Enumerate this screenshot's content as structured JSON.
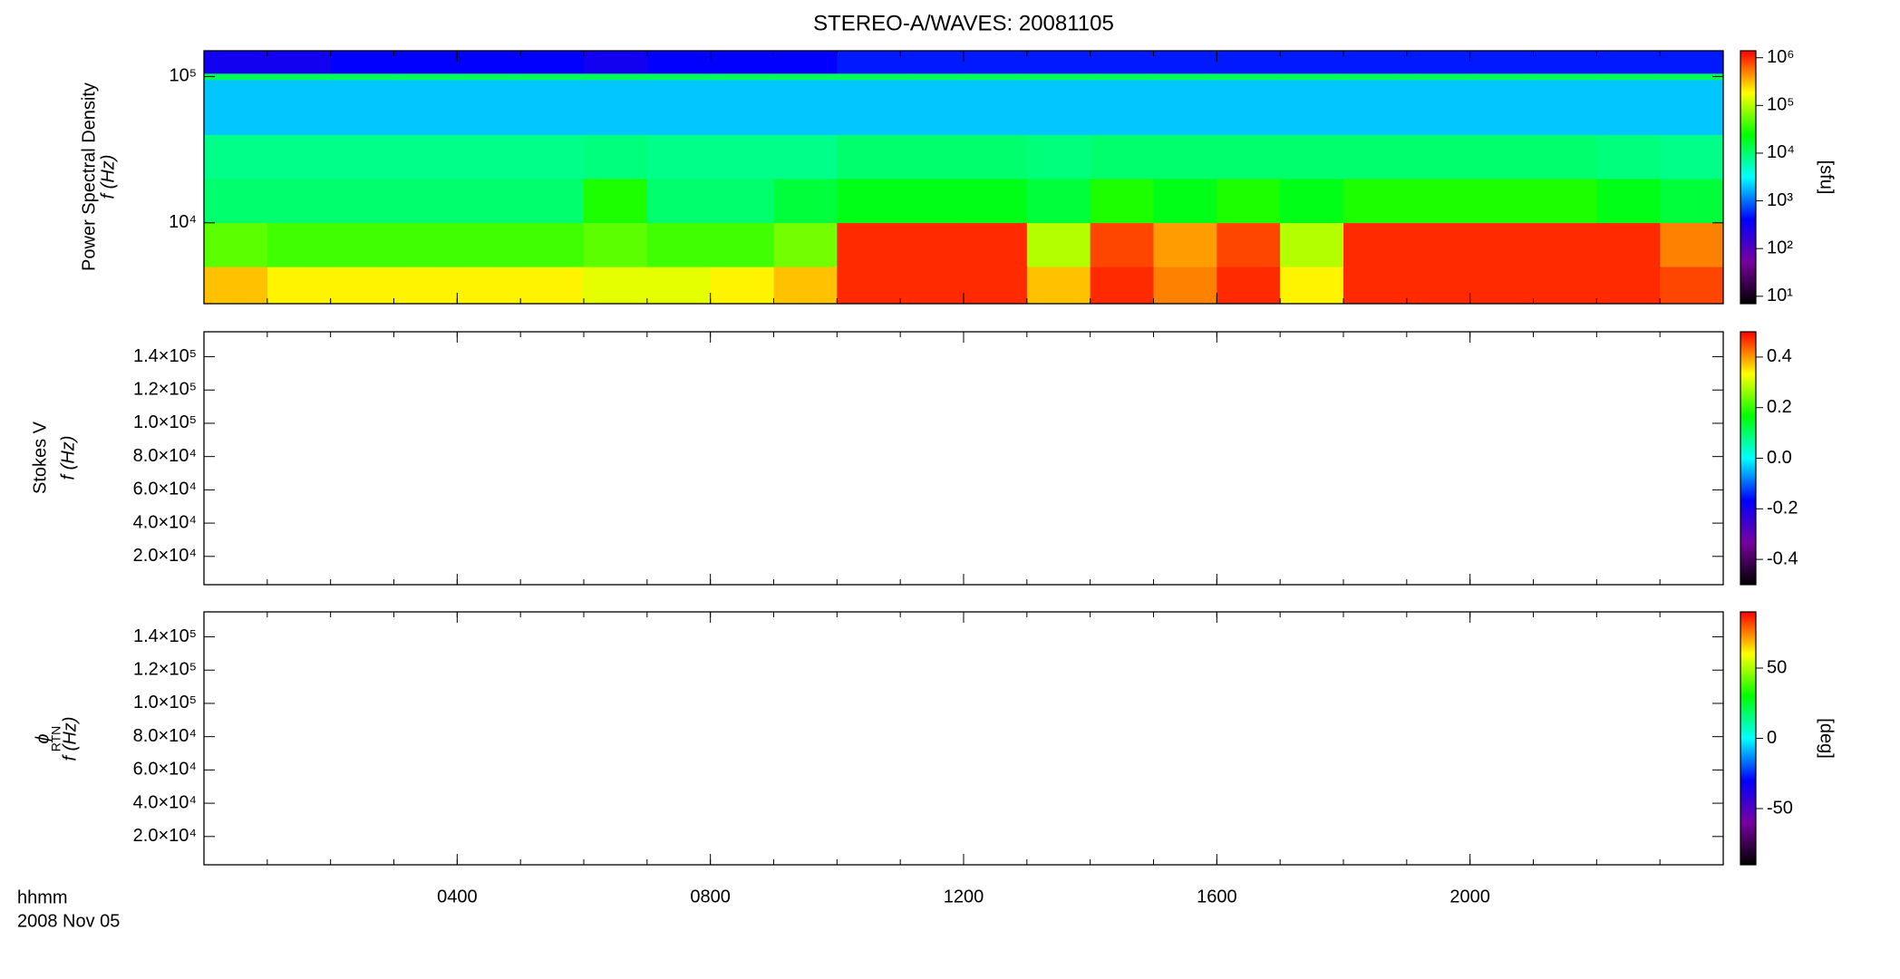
{
  "chart_data": [
    {
      "type": "heatmap",
      "title": "STEREO-A/WAVES: 20081105",
      "y_label": [
        "Power Spectral Density",
        "f (Hz)"
      ],
      "yscale": "log",
      "ylim": [
        2800,
        150000
      ],
      "yticks": [
        {
          "value": 10000,
          "label": "10⁴"
        },
        {
          "value": 100000,
          "label": "10⁵"
        }
      ],
      "xlim": [
        0,
        24
      ],
      "xminor": 1,
      "x_edges": [
        0,
        1,
        2,
        3,
        4,
        5,
        6,
        7,
        8,
        9,
        10,
        11,
        12,
        13,
        14,
        15,
        16,
        17,
        18,
        19,
        20,
        21,
        22,
        23,
        24
      ],
      "y_edges": [
        2800,
        5000,
        10000,
        20000,
        40000,
        95000,
        105000,
        150000
      ],
      "values": [
        [
          300000,
          200000,
          200000,
          200000,
          200000,
          200000,
          150000,
          150000,
          200000,
          300000,
          1000000,
          1000000,
          1000000,
          300000,
          1000000,
          500000,
          1000000,
          200000,
          1000000,
          1000000,
          1000000,
          1000000,
          1000000,
          800000
        ],
        [
          50000,
          40000,
          40000,
          40000,
          40000,
          40000,
          50000,
          40000,
          40000,
          60000,
          1000000,
          1000000,
          1000000,
          100000,
          800000,
          400000,
          800000,
          100000,
          1000000,
          1000000,
          1000000,
          1000000,
          1000000,
          500000
        ],
        [
          10000,
          10000,
          10000,
          10000,
          10000,
          10000,
          30000,
          10000,
          10000,
          15000,
          20000,
          20000,
          20000,
          15000,
          30000,
          20000,
          30000,
          20000,
          30000,
          30000,
          30000,
          30000,
          20000,
          15000
        ],
        [
          8000,
          8000,
          8000,
          8000,
          8000,
          8000,
          9000,
          8000,
          8000,
          8000,
          10000,
          10000,
          10000,
          9000,
          10000,
          10000,
          10000,
          10000,
          10000,
          10000,
          10000,
          10000,
          9000,
          8000
        ],
        [
          2000,
          2000,
          2000,
          2000,
          2000,
          2000,
          2000,
          2000,
          2000,
          2000,
          2000,
          2000,
          2000,
          2000,
          2000,
          2000,
          2000,
          2000,
          2000,
          2000,
          2000,
          2000,
          2000,
          2000
        ],
        [
          12000,
          12000,
          12000,
          12000,
          12000,
          12000,
          12000,
          12000,
          12000,
          12000,
          12000,
          12000,
          12000,
          12000,
          12000,
          12000,
          12000,
          12000,
          12000,
          12000,
          12000,
          12000,
          12000,
          12000
        ],
        [
          300,
          300,
          400,
          400,
          400,
          400,
          300,
          400,
          400,
          400,
          500,
          500,
          500,
          500,
          500,
          500,
          500,
          500,
          500,
          500,
          500,
          500,
          500,
          500
        ]
      ],
      "colormap": [
        "#000000",
        "#7800a0",
        "#0000ff",
        "#00ffff",
        "#00ff00",
        "#ffff00",
        "#ff0000"
      ],
      "cscale": "log",
      "clim": [
        7,
        1400000
      ],
      "cticks": [
        {
          "value": 10,
          "label": "10¹"
        },
        {
          "value": 100,
          "label": "10²"
        },
        {
          "value": 1000,
          "label": "10³"
        },
        {
          "value": 10000,
          "label": "10⁴"
        },
        {
          "value": 100000,
          "label": "10⁵"
        },
        {
          "value": 1000000,
          "label": "10⁶"
        }
      ],
      "clabel": "[sfu]"
    },
    {
      "type": "heatmap",
      "y_label": [
        "Stokes V",
        "f (Hz)"
      ],
      "yscale": "linear",
      "ylim": [
        3000,
        155000
      ],
      "yticks": [
        {
          "value": 20000,
          "label": "2.0×10⁴"
        },
        {
          "value": 40000,
          "label": "4.0×10⁴"
        },
        {
          "value": 60000,
          "label": "6.0×10⁴"
        },
        {
          "value": 80000,
          "label": "8.0×10⁴"
        },
        {
          "value": 100000,
          "label": "1.0×10⁵"
        },
        {
          "value": 120000,
          "label": "1.2×10⁵"
        },
        {
          "value": 140000,
          "label": "1.4×10⁵"
        }
      ],
      "xlim": [
        0,
        24
      ],
      "xminor": 1,
      "colormap": [
        "#000000",
        "#7800a0",
        "#0000ff",
        "#00ffff",
        "#00ff00",
        "#ffff00",
        "#ff0000"
      ],
      "cscale": "linear",
      "clim": [
        -0.5,
        0.5
      ],
      "cticks": [
        -0.4,
        -0.2,
        {
          "value": 0,
          "label": "0.0"
        },
        0.2,
        0.4
      ]
    },
    {
      "type": "heatmap",
      "y_label": [
        "ϕ",
        "RTN",
        "f (Hz)"
      ],
      "yscale": "linear",
      "ylim": [
        3000,
        155000
      ],
      "yticks": [
        {
          "value": 20000,
          "label": "2.0×10⁴"
        },
        {
          "value": 40000,
          "label": "4.0×10⁴"
        },
        {
          "value": 60000,
          "label": "6.0×10⁴"
        },
        {
          "value": 80000,
          "label": "8.0×10⁴"
        },
        {
          "value": 100000,
          "label": "1.0×10⁵"
        },
        {
          "value": 120000,
          "label": "1.2×10⁵"
        },
        {
          "value": 140000,
          "label": "1.4×10⁵"
        }
      ],
      "xlim": [
        0,
        24
      ],
      "xminor": 1,
      "xticks": [
        {
          "value": 4,
          "label": "0400"
        },
        {
          "value": 8,
          "label": "0800"
        },
        {
          "value": 12,
          "label": "1200"
        },
        {
          "value": 16,
          "label": "1600"
        },
        {
          "value": 20,
          "label": "2000"
        }
      ],
      "x_label": [
        "hhmm",
        "2008 Nov 05"
      ],
      "colormap": [
        "#000000",
        "#7800a0",
        "#0000ff",
        "#00ffff",
        "#00ff00",
        "#ffff00",
        "#ff0000"
      ],
      "cscale": "linear",
      "clim": [
        -90,
        90
      ],
      "cticks": [
        -50,
        0,
        50
      ],
      "clabel": "[deg]"
    }
  ]
}
